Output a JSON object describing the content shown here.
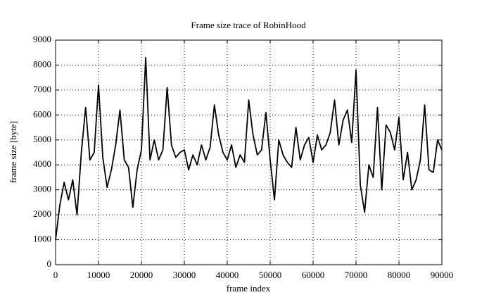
{
  "chart_data": {
    "type": "line",
    "title": "Frame size trace of RobinHood",
    "x_label": "frame index",
    "y_label": "frame size [byte]",
    "x": [
      0,
      1000,
      2000,
      3000,
      4000,
      5000,
      6000,
      7000,
      8000,
      9000,
      10000,
      11000,
      12000,
      13000,
      14000,
      15000,
      16000,
      17000,
      18000,
      19000,
      20000,
      21000,
      22000,
      23000,
      24000,
      25000,
      26000,
      27000,
      28000,
      29000,
      30000,
      31000,
      32000,
      33000,
      34000,
      35000,
      36000,
      37000,
      38000,
      39000,
      40000,
      41000,
      42000,
      43000,
      44000,
      45000,
      46000,
      47000,
      48000,
      49000,
      50000,
      51000,
      52000,
      53000,
      54000,
      55000,
      56000,
      57000,
      58000,
      59000,
      60000,
      61000,
      62000,
      63000,
      64000,
      65000,
      66000,
      67000,
      68000,
      69000,
      70000,
      71000,
      72000,
      73000,
      74000,
      75000,
      76000,
      77000,
      78000,
      79000,
      80000,
      81000,
      82000,
      83000,
      84000,
      85000,
      86000,
      87000,
      88000,
      89000,
      90000
    ],
    "series": [
      {
        "name": "RobinHood",
        "color": "#000000",
        "values": [
          1000,
          2400,
          3300,
          2600,
          3400,
          2000,
          4500,
          6300,
          4200,
          4500,
          7200,
          4300,
          3100,
          3800,
          4800,
          6200,
          4200,
          3900,
          2300,
          3800,
          4600,
          8300,
          4200,
          5000,
          4200,
          4600,
          7100,
          4800,
          4300,
          4500,
          4600,
          3800,
          4400,
          4000,
          4800,
          4200,
          4700,
          6400,
          5200,
          4500,
          4200,
          4800,
          3900,
          4400,
          4100,
          6600,
          5200,
          4400,
          4600,
          6100,
          4200,
          2600,
          5000,
          4400,
          4100,
          3900,
          5500,
          4200,
          4800,
          5100,
          4100,
          5200,
          4600,
          4800,
          5300,
          6600,
          4800,
          5800,
          6200,
          4900,
          7800,
          3200,
          2100,
          4000,
          3500,
          6300,
          3000,
          5600,
          5300,
          4600,
          5900,
          3400,
          4500,
          3000,
          3400,
          4200,
          6400,
          3800,
          3700,
          5000,
          4600
        ]
      }
    ],
    "xlim": [
      0,
      90000
    ],
    "ylim": [
      0,
      9000
    ],
    "xticks": [
      0,
      10000,
      20000,
      30000,
      40000,
      50000,
      60000,
      70000,
      80000,
      90000
    ],
    "yticks": [
      0,
      1000,
      2000,
      3000,
      4000,
      5000,
      6000,
      7000,
      8000,
      9000
    ],
    "grid": true
  }
}
